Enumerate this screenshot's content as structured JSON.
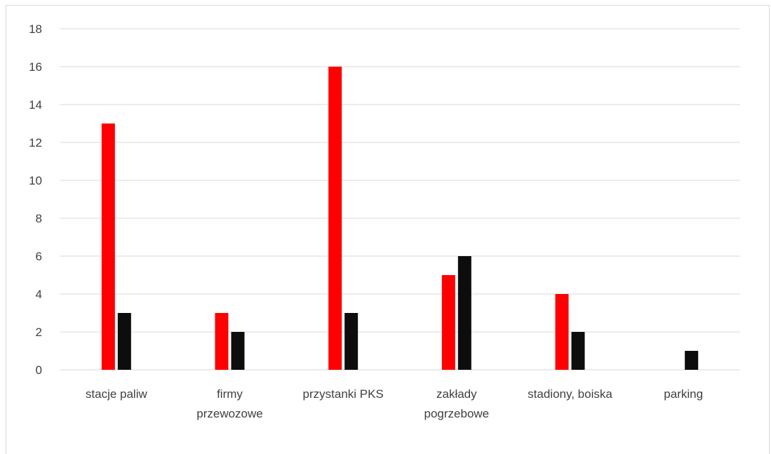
{
  "chart_data": {
    "type": "bar",
    "title": "",
    "xlabel": "",
    "ylabel": "",
    "ylim": [
      0,
      18
    ],
    "yticks": [
      0,
      2,
      4,
      6,
      8,
      10,
      12,
      14,
      16,
      18
    ],
    "grid": true,
    "categories": [
      [
        "stacje paliw"
      ],
      [
        "firmy",
        "przewozowe"
      ],
      [
        "przystanki PKS"
      ],
      [
        "zakłady",
        "pogrzebowe"
      ],
      [
        "stadiony, boiska"
      ],
      [
        "parking"
      ]
    ],
    "series": [
      {
        "color": "#ff0000",
        "values": [
          13,
          3,
          16,
          5,
          4,
          0
        ]
      },
      {
        "color": "#0d0d0d",
        "values": [
          3,
          2,
          3,
          6,
          2,
          1
        ]
      }
    ]
  }
}
